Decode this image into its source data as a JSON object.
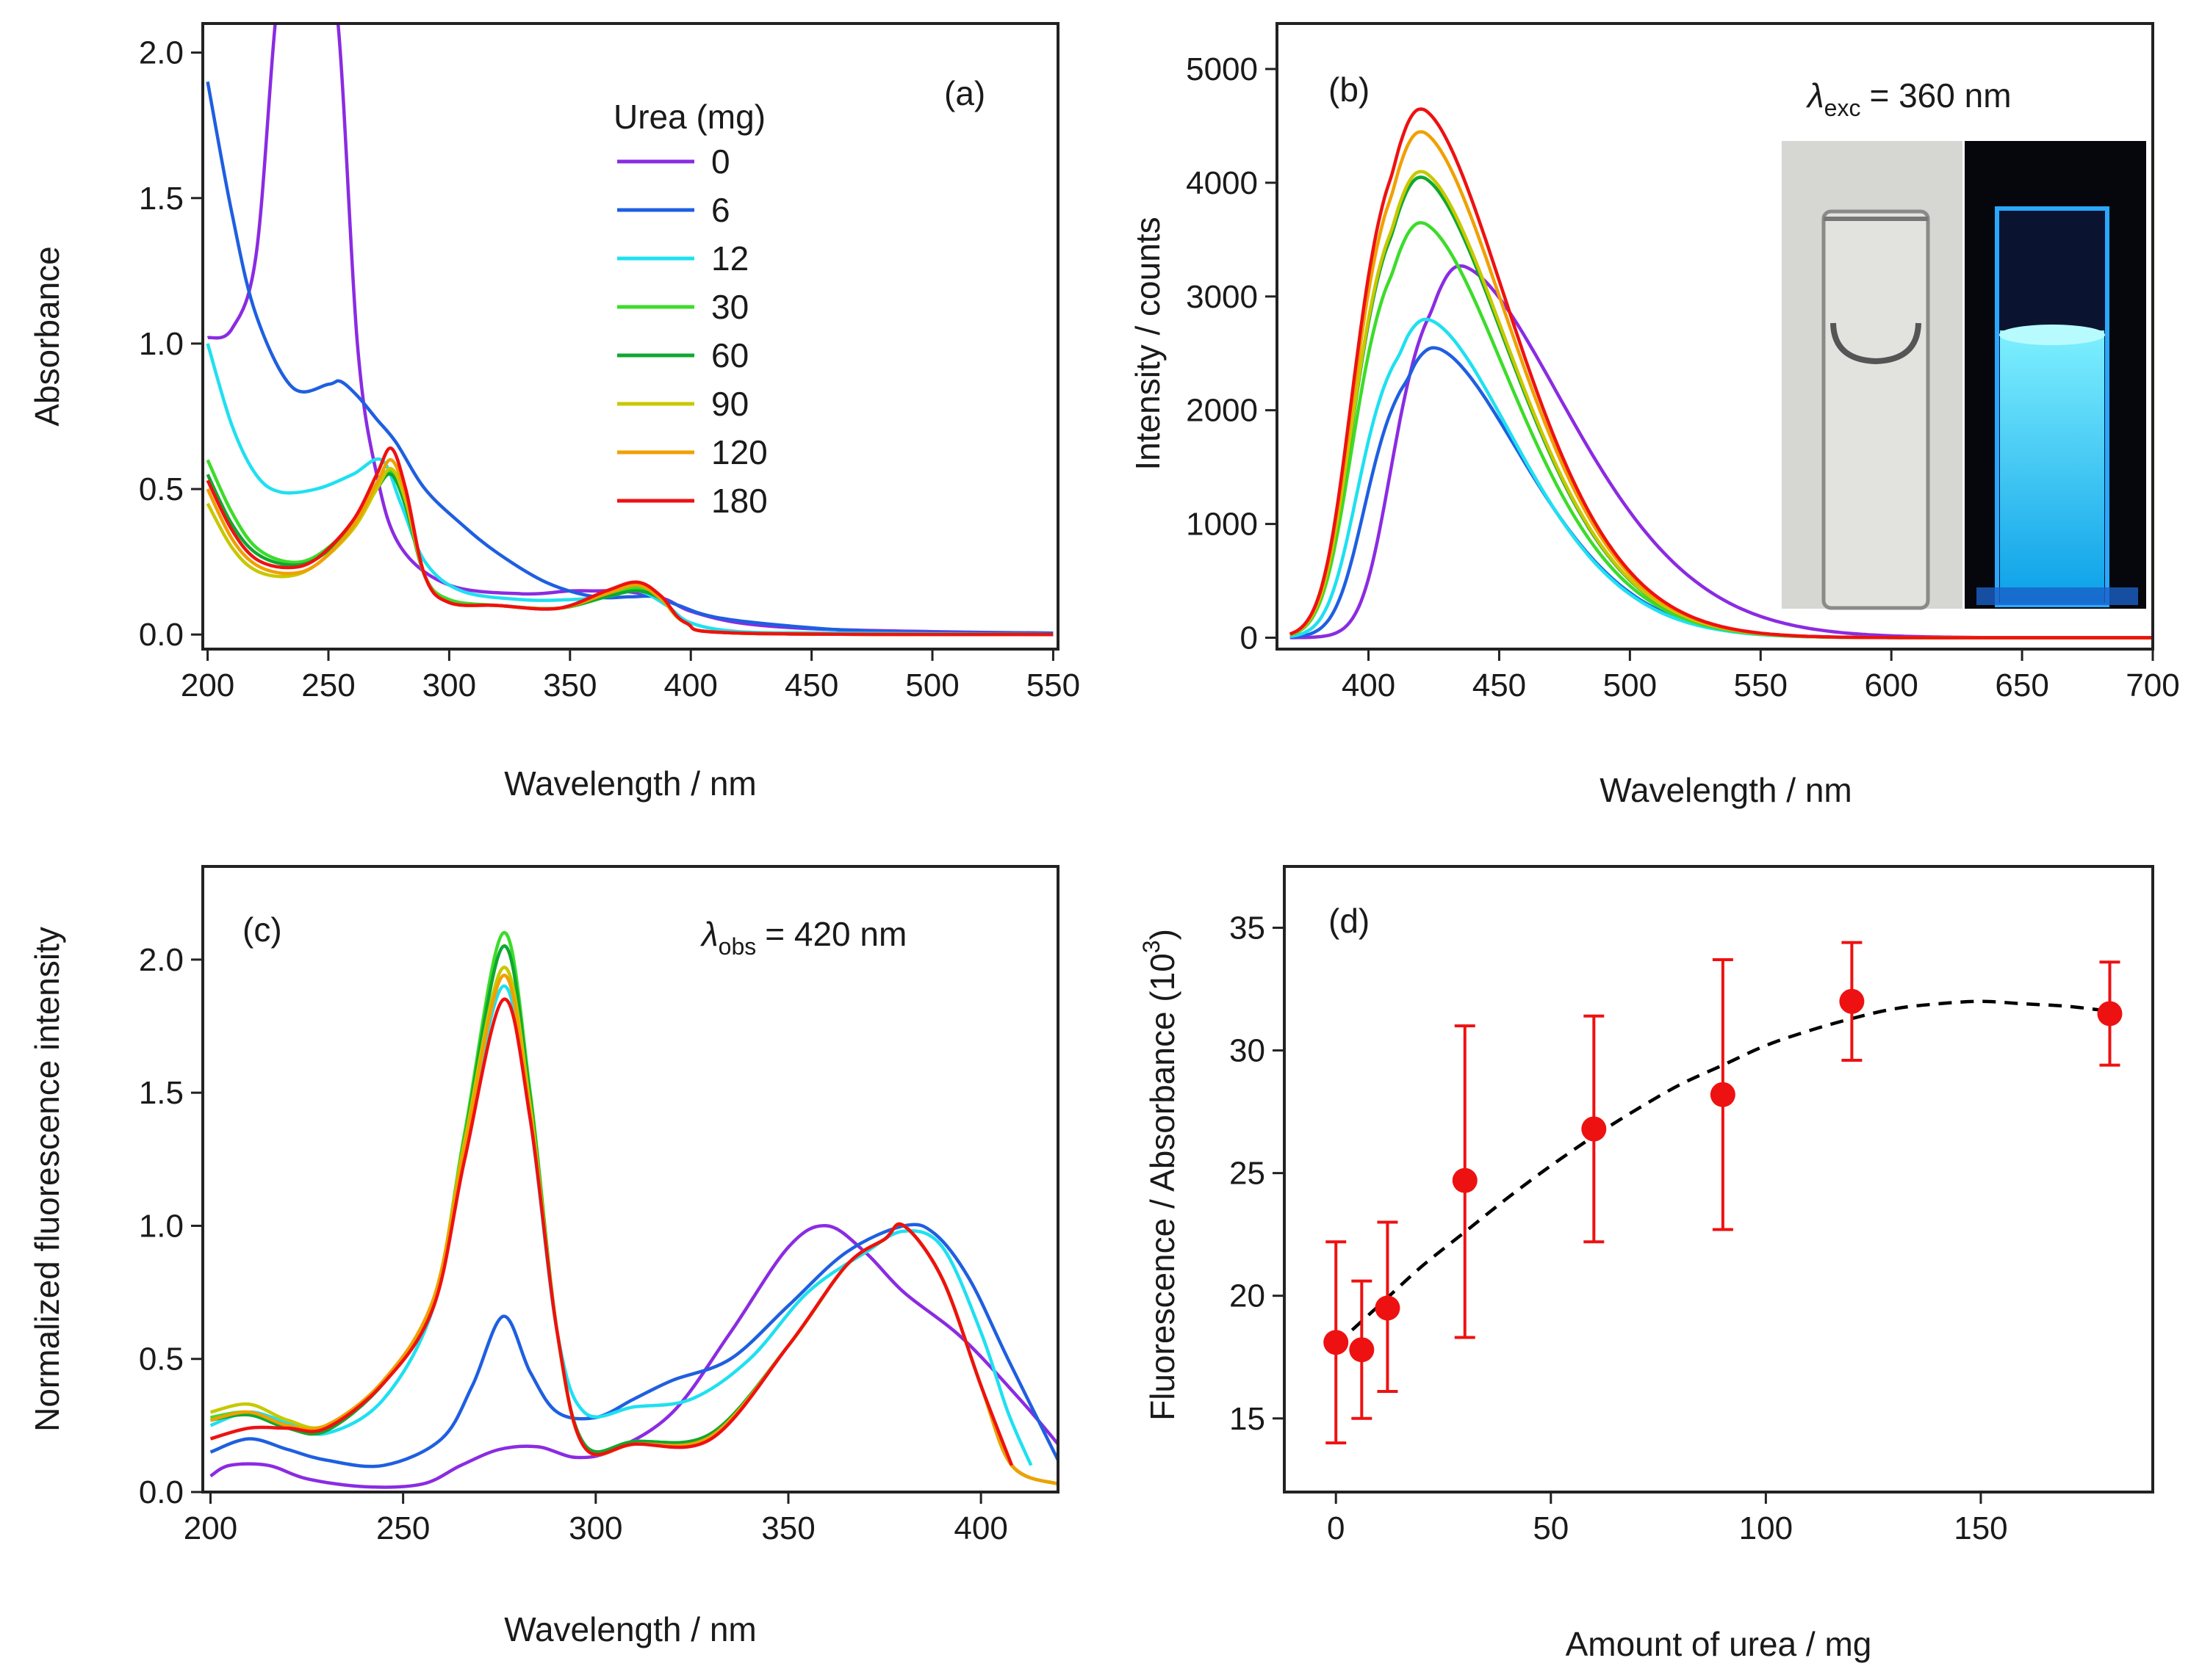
{
  "figure_title": "Urea-dependent absorption and fluorescence spectra",
  "colors": {
    "0": "#8b2be2",
    "6": "#1f5fe0",
    "12": "#1fe0f0",
    "30": "#3cdc2a",
    "60": "#0fa830",
    "90": "#c8c800",
    "120": "#f0a000",
    "180": "#ee1111",
    "marker": "#ee1111",
    "fit": "#000000"
  },
  "legend": {
    "title": "Urea (mg)",
    "items": [
      "0",
      "6",
      "12",
      "30",
      "60",
      "90",
      "120",
      "180"
    ]
  },
  "inset": {
    "description_icon": "cuvette-photo-icon",
    "left_bg": "#d8d8d6",
    "right_bg": "#05070c",
    "glow": "#22c8ff"
  },
  "chart_data": [
    {
      "panel": "(a)",
      "type": "line",
      "title": "",
      "xlabel": "Wavelength / nm",
      "ylabel": "Absorbance",
      "xlim": [
        198,
        552
      ],
      "ylim": [
        -0.05,
        2.1
      ],
      "xticks": [
        "200",
        "250",
        "300",
        "350",
        "400",
        "450",
        "500",
        "550"
      ],
      "yticks": [
        "0.0",
        "0.5",
        "1.0",
        "1.5",
        "2.0"
      ],
      "series": [
        {
          "name": "0",
          "x": [
            200,
            210,
            220,
            228,
            235,
            245,
            254,
            262,
            270,
            280,
            300,
            330,
            350,
            360,
            370,
            380,
            390,
            400,
            420,
            450,
            500,
            550
          ],
          "y": [
            1.02,
            1.05,
            1.3,
            2.1,
            2.6,
            2.6,
            2.1,
            1.0,
            0.55,
            0.3,
            0.17,
            0.14,
            0.15,
            0.15,
            0.15,
            0.14,
            0.12,
            0.08,
            0.04,
            0.02,
            0.01,
            0.005
          ]
        },
        {
          "name": "6",
          "x": [
            200,
            210,
            220,
            235,
            250,
            255,
            262,
            270,
            278,
            290,
            305,
            320,
            340,
            360,
            375,
            385,
            395,
            410,
            440,
            480,
            550
          ],
          "y": [
            1.9,
            1.45,
            1.1,
            0.85,
            0.86,
            0.87,
            0.82,
            0.74,
            0.66,
            0.5,
            0.38,
            0.28,
            0.18,
            0.13,
            0.13,
            0.13,
            0.1,
            0.06,
            0.03,
            0.01,
            0.005
          ]
        },
        {
          "name": "12",
          "x": [
            200,
            210,
            220,
            230,
            245,
            260,
            272,
            280,
            290,
            305,
            330,
            350,
            365,
            378,
            390,
            400,
            420,
            460,
            550
          ],
          "y": [
            1.0,
            0.72,
            0.55,
            0.49,
            0.5,
            0.55,
            0.6,
            0.45,
            0.25,
            0.15,
            0.12,
            0.12,
            0.13,
            0.15,
            0.1,
            0.04,
            0.01,
            0.005,
            0.0
          ]
        },
        {
          "name": "30",
          "x": [
            200,
            210,
            220,
            233,
            245,
            260,
            270,
            276,
            282,
            290,
            300,
            320,
            345,
            365,
            378,
            388,
            398,
            420,
            550
          ],
          "y": [
            0.6,
            0.42,
            0.3,
            0.25,
            0.27,
            0.38,
            0.52,
            0.56,
            0.45,
            0.2,
            0.12,
            0.1,
            0.09,
            0.13,
            0.16,
            0.12,
            0.04,
            0.005,
            0.0
          ]
        },
        {
          "name": "60",
          "x": [
            200,
            210,
            220,
            233,
            245,
            260,
            270,
            276,
            282,
            290,
            300,
            320,
            345,
            365,
            378,
            388,
            398,
            420,
            550
          ],
          "y": [
            0.55,
            0.38,
            0.28,
            0.24,
            0.26,
            0.37,
            0.5,
            0.55,
            0.44,
            0.2,
            0.11,
            0.1,
            0.09,
            0.13,
            0.15,
            0.12,
            0.04,
            0.005,
            0.0
          ]
        },
        {
          "name": "90",
          "x": [
            200,
            210,
            220,
            233,
            245,
            260,
            270,
            276,
            282,
            290,
            300,
            320,
            345,
            365,
            378,
            388,
            398,
            420,
            550
          ],
          "y": [
            0.45,
            0.3,
            0.22,
            0.2,
            0.24,
            0.36,
            0.5,
            0.57,
            0.46,
            0.2,
            0.11,
            0.1,
            0.09,
            0.14,
            0.17,
            0.12,
            0.04,
            0.005,
            0.0
          ]
        },
        {
          "name": "120",
          "x": [
            200,
            210,
            220,
            233,
            245,
            260,
            270,
            276,
            282,
            290,
            300,
            320,
            345,
            365,
            378,
            388,
            398,
            420,
            550
          ],
          "y": [
            0.5,
            0.33,
            0.24,
            0.21,
            0.24,
            0.37,
            0.52,
            0.6,
            0.48,
            0.2,
            0.11,
            0.1,
            0.09,
            0.14,
            0.17,
            0.12,
            0.04,
            0.005,
            0.0
          ]
        },
        {
          "name": "180",
          "x": [
            200,
            210,
            220,
            233,
            245,
            260,
            270,
            276,
            282,
            290,
            300,
            320,
            345,
            365,
            378,
            388,
            398,
            420,
            550
          ],
          "y": [
            0.53,
            0.36,
            0.26,
            0.23,
            0.26,
            0.39,
            0.55,
            0.64,
            0.5,
            0.2,
            0.11,
            0.1,
            0.09,
            0.15,
            0.18,
            0.13,
            0.04,
            0.005,
            0.0
          ]
        }
      ]
    },
    {
      "panel": "(b)",
      "type": "line",
      "title": "",
      "annotation": "λexc = 360 nm",
      "annotation_symbol": "λ",
      "annotation_sub": "exc",
      "annotation_rest": "= 360 nm",
      "xlabel": "Wavelength / nm",
      "ylabel": "Intensity / counts",
      "xlim": [
        365,
        700
      ],
      "ylim": [
        -100,
        5400
      ],
      "xticks": [
        "400",
        "450",
        "500",
        "550",
        "600",
        "650",
        "700"
      ],
      "yticks": [
        "0",
        "1000",
        "2000",
        "3000",
        "4000",
        "5000"
      ],
      "series": [
        {
          "name": "0",
          "peak_x": 435,
          "peak_y": 3270
        },
        {
          "name": "6",
          "peak_x": 425,
          "peak_y": 2550
        },
        {
          "name": "12",
          "peak_x": 422,
          "peak_y": 2800
        },
        {
          "name": "30",
          "peak_x": 420,
          "peak_y": 3650
        },
        {
          "name": "60",
          "peak_x": 420,
          "peak_y": 4050
        },
        {
          "name": "90",
          "peak_x": 420,
          "peak_y": 4100
        },
        {
          "name": "120",
          "peak_x": 420,
          "peak_y": 4450
        },
        {
          "name": "180",
          "peak_x": 420,
          "peak_y": 4650
        }
      ]
    },
    {
      "panel": "(c)",
      "type": "line",
      "title": "",
      "annotation": "λobs = 420 nm",
      "annotation_symbol": "λ",
      "annotation_sub": "obs",
      "annotation_rest": "= 420 nm",
      "xlabel": "Wavelength / nm",
      "ylabel": "Normalized fluorescence intensity",
      "xlim": [
        198,
        420
      ],
      "ylim": [
        0,
        2.35
      ],
      "xticks": [
        "200",
        "250",
        "300",
        "350",
        "400"
      ],
      "yticks": [
        "0.0",
        "0.5",
        "1.0",
        "1.5",
        "2.0"
      ],
      "series": [
        {
          "name": "0",
          "x": [
            200,
            205,
            215,
            225,
            240,
            255,
            265,
            275,
            285,
            295,
            305,
            320,
            335,
            350,
            360,
            370,
            380,
            395,
            410,
            420
          ],
          "y": [
            0.06,
            0.1,
            0.1,
            0.05,
            0.02,
            0.03,
            0.1,
            0.16,
            0.17,
            0.13,
            0.16,
            0.3,
            0.6,
            0.92,
            1.0,
            0.9,
            0.75,
            0.58,
            0.35,
            0.18
          ]
        },
        {
          "name": "6",
          "x": [
            200,
            210,
            220,
            230,
            245,
            260,
            268,
            276,
            283,
            290,
            300,
            310,
            320,
            335,
            350,
            365,
            380,
            388,
            397,
            407,
            420
          ],
          "y": [
            0.15,
            0.2,
            0.16,
            0.12,
            0.1,
            0.2,
            0.4,
            0.66,
            0.45,
            0.3,
            0.28,
            0.35,
            0.42,
            0.5,
            0.7,
            0.9,
            1.0,
            0.97,
            0.8,
            0.5,
            0.12
          ]
        },
        {
          "name": "12",
          "x": [
            200,
            210,
            220,
            230,
            245,
            258,
            266,
            276,
            283,
            290,
            297,
            310,
            325,
            340,
            355,
            370,
            380,
            390,
            400,
            407,
            413
          ],
          "y": [
            0.25,
            0.3,
            0.26,
            0.22,
            0.35,
            0.7,
            1.3,
            1.9,
            1.4,
            0.6,
            0.3,
            0.32,
            0.35,
            0.5,
            0.75,
            0.9,
            0.98,
            0.92,
            0.6,
            0.3,
            0.1
          ]
        },
        {
          "name": "30",
          "x": [
            200,
            210,
            220,
            230,
            245,
            258,
            266,
            276,
            283,
            290,
            297,
            310,
            330,
            350,
            365,
            375,
            380,
            390,
            400,
            408,
            420
          ],
          "y": [
            0.28,
            0.3,
            0.25,
            0.24,
            0.42,
            0.72,
            1.35,
            2.1,
            1.5,
            0.6,
            0.18,
            0.19,
            0.22,
            0.55,
            0.85,
            0.95,
            1.0,
            0.8,
            0.4,
            0.1,
            0.03
          ]
        },
        {
          "name": "60",
          "x": [
            200,
            210,
            220,
            230,
            245,
            258,
            266,
            276,
            283,
            290,
            297,
            310,
            330,
            350,
            365,
            375,
            380,
            390,
            400,
            408,
            420
          ],
          "y": [
            0.27,
            0.29,
            0.24,
            0.23,
            0.41,
            0.71,
            1.33,
            2.05,
            1.48,
            0.6,
            0.18,
            0.19,
            0.22,
            0.55,
            0.85,
            0.95,
            1.0,
            0.8,
            0.4,
            0.1,
            0.03
          ]
        },
        {
          "name": "90",
          "x": [
            200,
            210,
            220,
            230,
            245,
            258,
            266,
            276,
            283,
            290,
            297,
            310,
            330,
            350,
            365,
            375,
            380,
            390,
            400,
            408,
            420
          ],
          "y": [
            0.3,
            0.33,
            0.27,
            0.25,
            0.42,
            0.73,
            1.32,
            1.97,
            1.45,
            0.6,
            0.17,
            0.18,
            0.21,
            0.55,
            0.85,
            0.95,
            1.0,
            0.8,
            0.4,
            0.1,
            0.03
          ]
        },
        {
          "name": "120",
          "x": [
            200,
            210,
            220,
            230,
            245,
            258,
            266,
            276,
            283,
            290,
            297,
            310,
            330,
            350,
            365,
            375,
            380,
            390,
            400,
            408,
            420
          ],
          "y": [
            0.27,
            0.3,
            0.25,
            0.25,
            0.42,
            0.73,
            1.3,
            1.94,
            1.42,
            0.6,
            0.17,
            0.18,
            0.21,
            0.55,
            0.85,
            0.95,
            1.0,
            0.8,
            0.4,
            0.1,
            0.03
          ]
        },
        {
          "name": "180",
          "x": [
            200,
            210,
            220,
            230,
            245,
            258,
            266,
            276,
            283,
            290,
            297,
            310,
            330,
            350,
            365,
            375,
            380,
            390,
            400,
            408
          ],
          "y": [
            0.2,
            0.24,
            0.24,
            0.24,
            0.41,
            0.7,
            1.25,
            1.85,
            1.4,
            0.6,
            0.17,
            0.18,
            0.2,
            0.55,
            0.85,
            0.95,
            1.0,
            0.8,
            0.4,
            0.1
          ]
        }
      ]
    },
    {
      "panel": "(d)",
      "type": "scatter",
      "title": "",
      "xlabel": "Amount of urea / mg",
      "ylabel": "Fluorescence / Absorbance (10",
      "ylabel_sup": "3",
      "ylabel_close": ")",
      "xlim": [
        -12,
        190
      ],
      "ylim": [
        12,
        37.5
      ],
      "xticks": [
        "0",
        "50",
        "100",
        "150"
      ],
      "yticks": [
        "15",
        "20",
        "25",
        "30",
        "35"
      ],
      "points": [
        {
          "x": 0,
          "y": 18.1,
          "err_low": 14.0,
          "err_high": 22.2
        },
        {
          "x": 6,
          "y": 17.8,
          "err_low": 15.0,
          "err_high": 20.6
        },
        {
          "x": 12,
          "y": 19.5,
          "err_low": 16.1,
          "err_high": 23.0
        },
        {
          "x": 30,
          "y": 24.7,
          "err_low": 18.3,
          "err_high": 31.0
        },
        {
          "x": 60,
          "y": 26.8,
          "err_low": 22.2,
          "err_high": 31.4
        },
        {
          "x": 90,
          "y": 28.2,
          "err_low": 22.7,
          "err_high": 33.7
        },
        {
          "x": 120,
          "y": 32.0,
          "err_low": 29.6,
          "err_high": 34.4
        },
        {
          "x": 180,
          "y": 31.5,
          "err_low": 29.4,
          "err_high": 33.6
        }
      ],
      "fit": {
        "style": "dashed",
        "x": [
          0,
          10,
          20,
          30,
          40,
          50,
          60,
          70,
          80,
          90,
          100,
          110,
          120,
          130,
          140,
          150,
          160,
          170,
          180
        ],
        "y": [
          18.0,
          19.6,
          21.2,
          22.6,
          24.0,
          25.3,
          26.5,
          27.6,
          28.6,
          29.4,
          30.2,
          30.8,
          31.3,
          31.7,
          31.9,
          32.0,
          31.9,
          31.8,
          31.6
        ]
      }
    }
  ]
}
